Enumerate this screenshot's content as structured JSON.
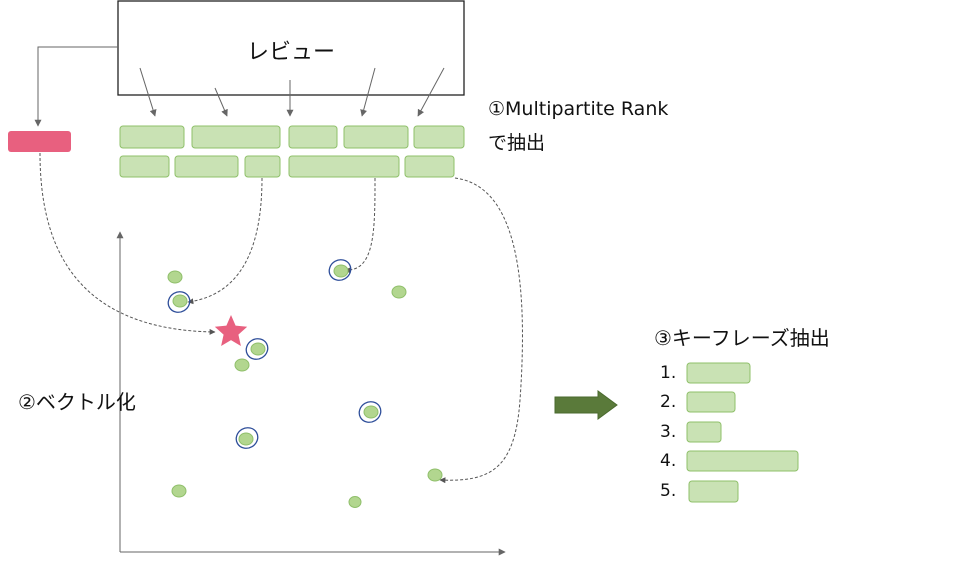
{
  "review_box": {
    "title": "レビュー"
  },
  "step1": {
    "line1": "①Multipartite Rank",
    "line2": "で抽出"
  },
  "step2": {
    "label": "②ベクトル化"
  },
  "step3": {
    "label": "③キーフレーズ抽出"
  },
  "ranking": [
    "1.",
    "2.",
    "3.",
    "4.",
    "5."
  ],
  "colors": {
    "phrase_fill": "#c9e2b4",
    "phrase_stroke": "#8fc06a",
    "point_fill": "#b2d68f",
    "query_pink": "#e8607f",
    "highlight_ring": "#2f4f9a",
    "arrow_green": "#5a7a3a",
    "line_gray": "#666666"
  }
}
